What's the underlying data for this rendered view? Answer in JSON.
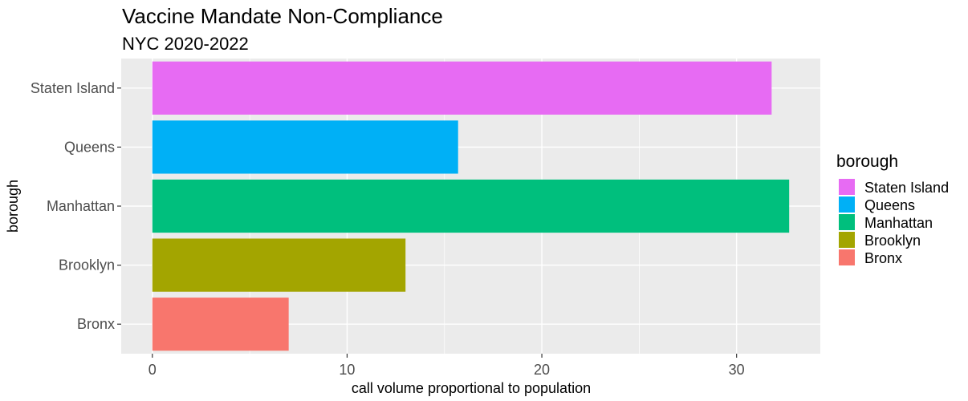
{
  "chart_data": {
    "type": "bar",
    "orientation": "horizontal",
    "title": "Vaccine Mandate Non-Compliance",
    "subtitle": "NYC 2020-2022",
    "xlabel": "call volume proportional to population",
    "ylabel": "borough",
    "categories": [
      "Bronx",
      "Brooklyn",
      "Manhattan",
      "Queens",
      "Staten Island"
    ],
    "values": [
      7.0,
      13.0,
      32.7,
      15.7,
      31.8
    ],
    "colors": [
      "#F8766D",
      "#A3A500",
      "#00BF7D",
      "#00B0F6",
      "#E76BF3"
    ],
    "xlim": [
      -1.6,
      34.3
    ],
    "xticks": [
      0,
      10,
      20,
      30
    ],
    "xtick_labels": [
      "0",
      "10",
      "20",
      "30"
    ],
    "grid": true,
    "panel_background": "#EBEBEB",
    "grid_color": "#FFFFFF",
    "legend": {
      "title": "borough",
      "position": "right",
      "entries": [
        "Staten Island",
        "Queens",
        "Manhattan",
        "Brooklyn",
        "Bronx"
      ],
      "colors": [
        "#E76BF3",
        "#00B0F6",
        "#00BF7D",
        "#A3A500",
        "#F8766D"
      ]
    }
  }
}
